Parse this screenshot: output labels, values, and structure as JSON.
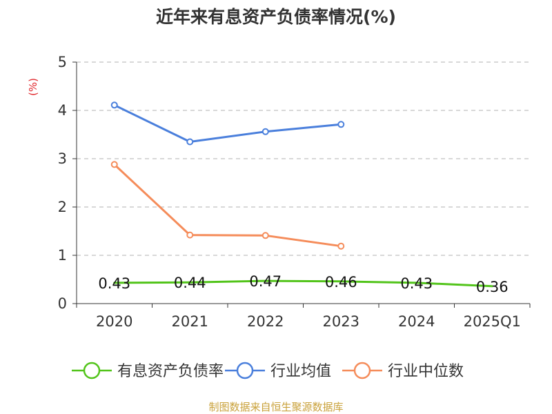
{
  "chart_data": {
    "type": "line",
    "title": "近年来有息资产负债率情况(%)",
    "ylabel": "(%)",
    "xlabel": "",
    "categories": [
      "2020",
      "2021",
      "2022",
      "2023",
      "2024",
      "2025Q1"
    ],
    "ylim": [
      0,
      5
    ],
    "yticks": [
      "0",
      "1",
      "2",
      "3",
      "4",
      "5"
    ],
    "grid": "horizontal-dashed",
    "legend_position": "bottom",
    "series": [
      {
        "name": "有息资产负债率",
        "color": "#52c41a",
        "values": [
          0.43,
          0.44,
          0.47,
          0.46,
          0.43,
          0.36
        ],
        "labels": [
          "0.43",
          "0.44",
          "0.47",
          "0.46",
          "0.43",
          "0.36"
        ],
        "show_markers": false
      },
      {
        "name": "行业均值",
        "color": "#4a7fdc",
        "values": [
          4.11,
          3.35,
          3.56,
          3.71,
          null,
          null
        ],
        "show_markers": true
      },
      {
        "name": "行业中位数",
        "color": "#f58c5a",
        "values": [
          2.88,
          1.42,
          1.41,
          1.19,
          null,
          null
        ],
        "show_markers": true
      }
    ],
    "source": "制图数据来自恒生聚源数据库"
  }
}
